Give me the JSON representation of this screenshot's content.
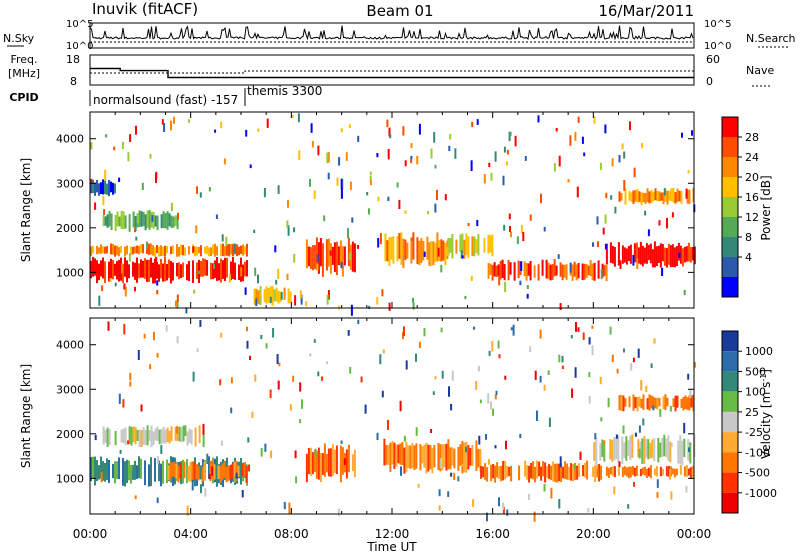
{
  "header": {
    "station": "Inuvik (fitACF)",
    "beam": "Beam 01",
    "date": "16/Mar/2011"
  },
  "labels": {
    "nsky": "N.Sky",
    "nsearch": "N.Search",
    "freq": "Freq.",
    "freq_unit": "[MHz]",
    "cpid": "CPID",
    "nave": "Nave",
    "mode1": "normalsound (fast) -157",
    "mode2": "themis 3300",
    "ylabel": "Slant Range [km]",
    "xlabel": "Time UT",
    "power_label": "Power [dB]",
    "velocity_label": "Velocity [m s",
    "velocity_exp": "-1",
    "velocity_suffix": "]"
  },
  "noise_panel": {
    "left_ticks": [
      "10^5",
      "10^0"
    ],
    "right_ticks": [
      "10^5",
      "10^0"
    ]
  },
  "freq_panel": {
    "left_ticks": [
      "18",
      "8"
    ],
    "right_ticks": [
      "60",
      "0"
    ],
    "freq_steps": [
      {
        "t": 0.0,
        "v": 13.5
      },
      {
        "t": 1.2,
        "v": 12.8
      },
      {
        "t": 3.1,
        "v": 10.5
      },
      {
        "t": 6.2,
        "v": 10.5
      },
      {
        "t": 24.0,
        "v": 10.5
      }
    ]
  },
  "chart_data": [
    {
      "type": "heatmap",
      "quantity": "Power",
      "ylabel": "Slant Range [km]",
      "xlabel": "",
      "xlim": [
        0,
        24
      ],
      "ylim": [
        200,
        4600
      ],
      "x_ticks": [
        "00:00",
        "04:00",
        "08:00",
        "12:00",
        "16:00",
        "20:00",
        "00:00"
      ],
      "y_ticks": [
        1000,
        2000,
        3000,
        4000
      ],
      "colorbar": {
        "label": "Power [dB]",
        "ticks": [
          28,
          24,
          20,
          16,
          12,
          8,
          4
        ],
        "colors": [
          "#ff0000",
          "#ff4d00",
          "#ff8800",
          "#ffc000",
          "#99cc33",
          "#55aa55",
          "#338877",
          "#2b5aaa",
          "#0000ff"
        ]
      },
      "bands": [
        {
          "t0": 0.0,
          "t1": 6.2,
          "r0": 750,
          "r1": 1350,
          "level": 0
        },
        {
          "t0": 0.0,
          "t1": 6.2,
          "r0": 1350,
          "r1": 1650,
          "level": 2
        },
        {
          "t0": 0.5,
          "t1": 3.5,
          "r0": 1900,
          "r1": 2400,
          "level": 5
        },
        {
          "t0": 0.0,
          "t1": 1.0,
          "r0": 2700,
          "r1": 3100,
          "level": 7
        },
        {
          "t0": 8.5,
          "t1": 10.5,
          "r0": 900,
          "r1": 1800,
          "level": 1
        },
        {
          "t0": 11.7,
          "t1": 14.2,
          "r0": 1100,
          "r1": 1900,
          "level": 2
        },
        {
          "t0": 14.2,
          "t1": 16.0,
          "r0": 1300,
          "r1": 1900,
          "level": 3
        },
        {
          "t0": 15.8,
          "t1": 20.5,
          "r0": 800,
          "r1": 1300,
          "level": 1
        },
        {
          "t0": 20.5,
          "t1": 24.0,
          "r0": 1100,
          "r1": 1700,
          "level": 0
        },
        {
          "t0": 21.0,
          "t1": 24.0,
          "r0": 2500,
          "r1": 2900,
          "level": 2
        },
        {
          "t0": 6.5,
          "t1": 8.0,
          "r0": 250,
          "r1": 700,
          "level": 3
        }
      ]
    },
    {
      "type": "heatmap",
      "quantity": "Velocity",
      "ylabel": "Slant Range [km]",
      "xlabel": "Time UT",
      "xlim": [
        0,
        24
      ],
      "ylim": [
        200,
        4600
      ],
      "x_ticks": [
        "00:00",
        "04:00",
        "08:00",
        "12:00",
        "16:00",
        "20:00",
        "00:00"
      ],
      "y_ticks": [
        1000,
        2000,
        3000,
        4000
      ],
      "colorbar": {
        "label": "Velocity [m s-1]",
        "ticks": [
          "1000",
          "500",
          "100",
          "25",
          "-25",
          "-100",
          "-500",
          "-1000"
        ],
        "colors": [
          "#1a3a9a",
          "#2d6cab",
          "#338877",
          "#66bb44",
          "#c8c8c8",
          "#ffaa33",
          "#ff7700",
          "#ff3300",
          "#ee0000"
        ]
      },
      "bands": [
        {
          "t0": 0.0,
          "t1": 6.2,
          "r0": 800,
          "r1": 1500,
          "level": 2
        },
        {
          "t0": 0.5,
          "t1": 4.5,
          "r0": 1700,
          "r1": 2200,
          "level": 4
        },
        {
          "t0": 3.0,
          "t1": 6.2,
          "r0": 900,
          "r1": 1400,
          "level": 6
        },
        {
          "t0": 8.5,
          "t1": 10.5,
          "r0": 900,
          "r1": 1800,
          "level": 6
        },
        {
          "t0": 11.5,
          "t1": 15.5,
          "r0": 1100,
          "r1": 1900,
          "level": 6
        },
        {
          "t0": 15.5,
          "t1": 20.5,
          "r0": 900,
          "r1": 1400,
          "level": 6
        },
        {
          "t0": 20.0,
          "t1": 24.0,
          "r0": 1300,
          "r1": 2000,
          "level": 4
        },
        {
          "t0": 20.5,
          "t1": 24.0,
          "r0": 1000,
          "r1": 1300,
          "level": 6
        },
        {
          "t0": 21.0,
          "t1": 24.0,
          "r0": 2500,
          "r1": 2900,
          "level": 6
        }
      ]
    }
  ]
}
